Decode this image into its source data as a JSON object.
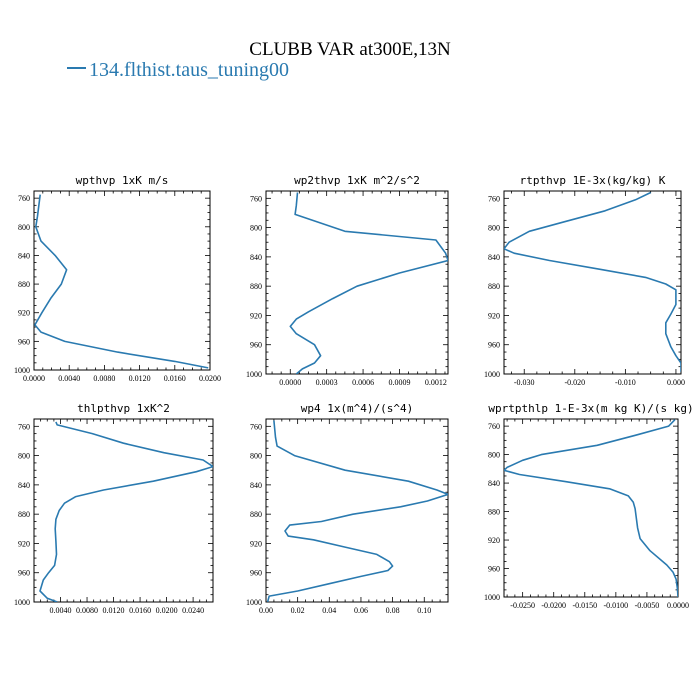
{
  "figure": {
    "title": "CLUBB VAR at300E,13N",
    "legend_label": "134.flthist.taus_tuning00",
    "line_color": "#2a7ab0"
  },
  "chart_data": [
    {
      "type": "line",
      "title": "wpthvp  1xK m/s",
      "xlim": [
        0,
        0.02
      ],
      "ylim": [
        1000,
        750
      ],
      "xticks": [
        0,
        0.004,
        0.008,
        0.012,
        0.016,
        0.02
      ],
      "xtick_labels": [
        "0.0000",
        "0.0040",
        "0.0080",
        "0.0120",
        "0.0160",
        "0.0200"
      ],
      "yticks": [
        760,
        800,
        840,
        880,
        920,
        960,
        1000
      ],
      "ytick_labels": [
        "760",
        "800",
        "840",
        "880",
        "920",
        "960",
        "1000"
      ],
      "series": [
        {
          "name": "134.flthist.taus_tuning00",
          "points": [
            [
              0.0007,
              755
            ],
            [
              0.0004,
              785
            ],
            [
              0.0002,
              800
            ],
            [
              0.0008,
              820
            ],
            [
              0.0024,
              840
            ],
            [
              0.0037,
              860
            ],
            [
              0.0031,
              880
            ],
            [
              0.0019,
              900
            ],
            [
              0.0009,
              920
            ],
            [
              0.0001,
              937
            ],
            [
              0.0008,
              947
            ],
            [
              0.0035,
              960
            ],
            [
              0.0095,
              975
            ],
            [
              0.016,
              988
            ],
            [
              0.0198,
              997
            ]
          ]
        }
      ]
    },
    {
      "type": "line",
      "title": "wp2thvp  1xK m^2/s^2",
      "xlim": [
        -0.0002,
        0.0013
      ],
      "ylim": [
        1000,
        750
      ],
      "xticks": [
        0,
        0.0003,
        0.0006,
        0.0009,
        0.0012
      ],
      "xtick_labels": [
        "0.0000",
        "0.0003",
        "0.0006",
        "0.0009",
        "0.0012"
      ],
      "yticks": [
        760,
        800,
        840,
        880,
        920,
        960,
        1000
      ],
      "ytick_labels": [
        "760",
        "800",
        "840",
        "880",
        "920",
        "960",
        "1000"
      ],
      "series": [
        {
          "name": "134.flthist.taus_tuning00",
          "points": [
            [
              6e-05,
              752
            ],
            [
              5e-05,
              770
            ],
            [
              4e-05,
              782
            ],
            [
              0.00045,
              805
            ],
            [
              0.0012,
              817
            ],
            [
              0.00128,
              835
            ],
            [
              0.0013,
              845
            ],
            [
              0.0009,
              862
            ],
            [
              0.00055,
              880
            ],
            [
              0.00035,
              897
            ],
            [
              0.00015,
              915
            ],
            [
              5e-05,
              925
            ],
            [
              0.0,
              935
            ],
            [
              5e-05,
              945
            ],
            [
              0.0002,
              960
            ],
            [
              0.00025,
              975
            ],
            [
              0.0002,
              985
            ],
            [
              0.0001,
              993
            ],
            [
              5e-05,
              1000
            ]
          ]
        }
      ]
    },
    {
      "type": "line",
      "title": "rtpthvp  1E-3x(kg/kg) K",
      "xlim": [
        -0.034,
        0.001
      ],
      "ylim": [
        1000,
        750
      ],
      "xticks": [
        -0.03,
        -0.02,
        -0.01,
        0
      ],
      "xtick_labels": [
        "-0.030",
        "-0.020",
        "-0.010",
        "0.000"
      ],
      "yticks": [
        760,
        800,
        840,
        880,
        920,
        960,
        1000
      ],
      "ytick_labels": [
        "760",
        "800",
        "840",
        "880",
        "920",
        "960",
        "1000"
      ],
      "series": [
        {
          "name": "134.flthist.taus_tuning00",
          "points": [
            [
              -0.005,
              752
            ],
            [
              -0.008,
              762
            ],
            [
              -0.014,
              777
            ],
            [
              -0.022,
              792
            ],
            [
              -0.029,
              805
            ],
            [
              -0.033,
              820
            ],
            [
              -0.034,
              829
            ],
            [
              -0.032,
              835
            ],
            [
              -0.025,
              845
            ],
            [
              -0.015,
              857
            ],
            [
              -0.006,
              868
            ],
            [
              -0.002,
              877
            ],
            [
              0.0,
              885
            ],
            [
              0.0,
              905
            ],
            [
              -0.001,
              918
            ],
            [
              -0.002,
              930
            ],
            [
              -0.002,
              945
            ],
            [
              -0.001,
              963
            ],
            [
              0.0,
              975
            ],
            [
              0.001,
              985
            ],
            [
              0.001,
              997
            ]
          ]
        }
      ]
    },
    {
      "type": "line",
      "title": "thlpthvp  1xK^2",
      "xlim": [
        0,
        0.027
      ],
      "ylim": [
        1000,
        750
      ],
      "xticks": [
        0.004,
        0.008,
        0.012,
        0.016,
        0.02,
        0.024
      ],
      "xtick_labels": [
        "0.0040",
        "0.0080",
        "0.0120",
        "0.0160",
        "0.0200",
        "0.0240"
      ],
      "yticks": [
        760,
        800,
        840,
        880,
        920,
        960,
        1000
      ],
      "ytick_labels": [
        "760",
        "800",
        "840",
        "880",
        "920",
        "960",
        "1000"
      ],
      "series": [
        {
          "name": "134.flthist.taus_tuning00",
          "points": [
            [
              0.0033,
              754
            ],
            [
              0.0035,
              758
            ],
            [
              0.0088,
              770
            ],
            [
              0.0135,
              783
            ],
            [
              0.0196,
              796
            ],
            [
              0.0255,
              806
            ],
            [
              0.027,
              815
            ],
            [
              0.0245,
              822
            ],
            [
              0.018,
              835
            ],
            [
              0.0105,
              847
            ],
            [
              0.0063,
              856
            ],
            [
              0.0046,
              865
            ],
            [
              0.0038,
              875
            ],
            [
              0.0033,
              887
            ],
            [
              0.0032,
              900
            ],
            [
              0.0033,
              917
            ],
            [
              0.0034,
              935
            ],
            [
              0.0031,
              950
            ],
            [
              0.0022,
              960
            ],
            [
              0.0014,
              970
            ],
            [
              0.0009,
              985
            ],
            [
              0.002,
              995
            ],
            [
              0.0035,
              1000
            ]
          ]
        }
      ]
    },
    {
      "type": "line",
      "title": "wp4  1x(m^4)/(s^4)",
      "xlim": [
        0,
        0.115
      ],
      "ylim": [
        1000,
        750
      ],
      "xticks": [
        0,
        0.02,
        0.04,
        0.06,
        0.08,
        0.1
      ],
      "xtick_labels": [
        "0.00",
        "0.02",
        "0.04",
        "0.06",
        "0.08",
        "0.10"
      ],
      "yticks": [
        760,
        800,
        840,
        880,
        920,
        960,
        1000
      ],
      "ytick_labels": [
        "760",
        "800",
        "840",
        "880",
        "920",
        "960",
        "1000"
      ],
      "series": [
        {
          "name": "134.flthist.taus_tuning00",
          "points": [
            [
              0.005,
              752
            ],
            [
              0.006,
              775
            ],
            [
              0.007,
              787
            ],
            [
              0.018,
              800
            ],
            [
              0.05,
              820
            ],
            [
              0.09,
              835
            ],
            [
              0.108,
              847
            ],
            [
              0.115,
              853
            ],
            [
              0.102,
              862
            ],
            [
              0.085,
              870
            ],
            [
              0.055,
              880
            ],
            [
              0.035,
              890
            ],
            [
              0.015,
              895
            ],
            [
              0.012,
              903
            ],
            [
              0.014,
              910
            ],
            [
              0.03,
              915
            ],
            [
              0.05,
              925
            ],
            [
              0.07,
              935
            ],
            [
              0.078,
              945
            ],
            [
              0.08,
              951
            ],
            [
              0.077,
              957
            ],
            [
              0.06,
              965
            ],
            [
              0.04,
              975
            ],
            [
              0.02,
              985
            ],
            [
              0.002,
              992
            ],
            [
              0.001,
              1000
            ]
          ]
        }
      ]
    },
    {
      "type": "line",
      "title": "wprtpthlp  1-E-3x(m kg K)/(s kg)",
      "xlim": [
        -0.028,
        0
      ],
      "ylim": [
        1000,
        750
      ],
      "xticks": [
        -0.025,
        -0.02,
        -0.015,
        -0.01,
        -0.005,
        0
      ],
      "xtick_labels": [
        "-0.0250",
        "-0.0200",
        "-0.0150",
        "-0.0100",
        "-0.0050",
        "0.0000"
      ],
      "yticks": [
        760,
        800,
        840,
        880,
        920,
        960,
        1000
      ],
      "ytick_labels": [
        "760",
        "800",
        "840",
        "880",
        "920",
        "960",
        "1000"
      ],
      "series": [
        {
          "name": "134.flthist.taus_tuning00",
          "points": [
            [
              -0.0005,
              751
            ],
            [
              -0.0015,
              760
            ],
            [
              -0.0065,
              772
            ],
            [
              -0.013,
              787
            ],
            [
              -0.022,
              800
            ],
            [
              -0.025,
              808
            ],
            [
              -0.0275,
              818
            ],
            [
              -0.028,
              822
            ],
            [
              -0.0255,
              828
            ],
            [
              -0.018,
              838
            ],
            [
              -0.011,
              848
            ],
            [
              -0.008,
              858
            ],
            [
              -0.0072,
              867
            ],
            [
              -0.0069,
              876
            ],
            [
              -0.0067,
              890
            ],
            [
              -0.0065,
              903
            ],
            [
              -0.0061,
              918
            ],
            [
              -0.0045,
              935
            ],
            [
              -0.0018,
              955
            ],
            [
              -0.0008,
              965
            ],
            [
              -0.0003,
              975
            ],
            [
              -0.0001,
              988
            ],
            [
              0.0,
              1000
            ]
          ]
        }
      ]
    }
  ]
}
